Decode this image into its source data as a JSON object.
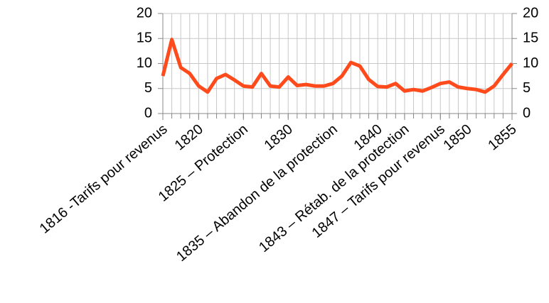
{
  "chart_data": {
    "type": "line",
    "x": [
      1816,
      1817,
      1818,
      1819,
      1820,
      1821,
      1822,
      1823,
      1824,
      1825,
      1826,
      1827,
      1828,
      1829,
      1830,
      1831,
      1832,
      1833,
      1834,
      1835,
      1836,
      1837,
      1838,
      1839,
      1840,
      1841,
      1842,
      1843,
      1844,
      1845,
      1846,
      1847,
      1848,
      1849,
      1850,
      1851,
      1852,
      1853,
      1854,
      1855
    ],
    "series": [
      {
        "color": "#ff4a1c",
        "values": [
          7.5,
          14.8,
          9.2,
          8.0,
          5.5,
          4.3,
          7.0,
          7.8,
          6.7,
          5.5,
          5.3,
          8.0,
          5.5,
          5.3,
          7.3,
          5.6,
          5.8,
          5.5,
          5.5,
          6.0,
          7.5,
          10.2,
          9.5,
          6.8,
          5.4,
          5.3,
          6.0,
          4.5,
          4.8,
          4.5,
          5.2,
          6.0,
          6.3,
          5.3,
          5.0,
          4.8,
          4.3,
          5.5,
          7.8,
          10.0
        ]
      }
    ],
    "xlim": [
      1816,
      1855
    ],
    "xticks": [
      {
        "value": 1816,
        "label": "1816 -Tarifs pour revenus"
      },
      1820,
      {
        "value": 1825,
        "label": "1825 – Protection"
      },
      1830,
      {
        "value": 1835,
        "label": "1835 – Abandon de la protection"
      },
      1840,
      {
        "value": 1843,
        "label": "1843 – Rétab. de la protection"
      },
      {
        "value": 1847,
        "label": "1847 – Tarifs pour revenus"
      },
      1850,
      1855
    ],
    "ylim": [
      0,
      20
    ],
    "yticks": [
      0,
      5,
      10,
      15,
      20
    ],
    "y2lim": [
      0,
      20
    ],
    "y2ticks": [
      0,
      5,
      10,
      15,
      20
    ],
    "grid": true
  }
}
